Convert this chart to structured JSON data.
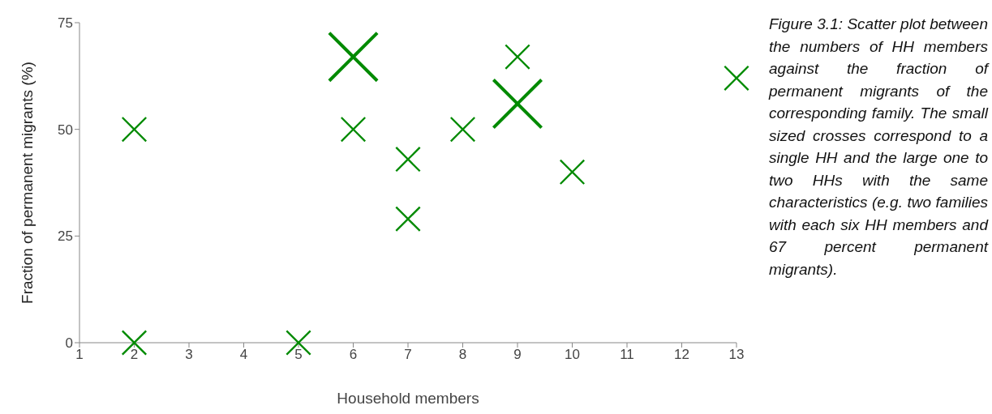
{
  "chart_data": {
    "type": "bubble",
    "xlabel": "Household members",
    "ylabel": "Fraction of permanent migrants (%)",
    "x": [
      2,
      2,
      5,
      6,
      6,
      7,
      7,
      8,
      9,
      9,
      10,
      13
    ],
    "series": [
      {
        "color": "#008a00",
        "values": [
          50,
          0,
          0,
          67,
          50,
          43,
          29,
          50,
          67,
          56,
          40,
          62
        ],
        "sizes": [
          0.25,
          0.25,
          0.25,
          1,
          0.25,
          0.25,
          0.25,
          0.25,
          0.25,
          1,
          0.25,
          0.25
        ]
      }
    ],
    "marker": "cross",
    "xlim": [
      1,
      13
    ],
    "xticks": [
      1,
      2,
      3,
      4,
      5,
      6,
      7,
      8,
      9,
      10,
      11,
      12,
      13
    ],
    "ylim": [
      0,
      75
    ],
    "yticks": [
      0,
      25,
      50,
      75
    ],
    "annotations": [
      "Figure 3.1: Scatter plot between the numbers of HH members against the fraction of permanent migrants of the corresponding family. The small sized crosses correspond to a single HH and the large one to two HHs with the same characteristics (e.g. two families with each six HH members and 67 percent permanent migrants)."
    ]
  }
}
